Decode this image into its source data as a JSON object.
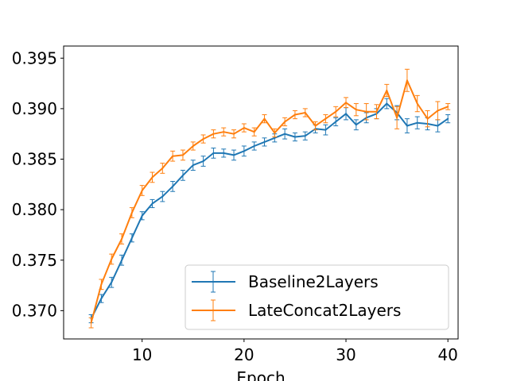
{
  "chart_data": {
    "type": "line",
    "title": "",
    "xlabel": "Epoch",
    "ylabel": "",
    "xlim": [
      2.3,
      41.0
    ],
    "ylim": [
      0.3672,
      0.3962
    ],
    "xticks": [
      10,
      20,
      30,
      40
    ],
    "yticks": [
      0.37,
      0.375,
      0.38,
      0.385,
      0.39,
      0.395
    ],
    "xtick_labels": [
      "10",
      "20",
      "30",
      "40"
    ],
    "ytick_labels": [
      "0.370",
      "0.375",
      "0.380",
      "0.385",
      "0.390",
      "0.395"
    ],
    "grid": false,
    "legend_position": "lower-right",
    "x": [
      5,
      6,
      7,
      8,
      9,
      10,
      11,
      12,
      13,
      14,
      15,
      16,
      17,
      18,
      19,
      20,
      21,
      22,
      23,
      24,
      25,
      26,
      27,
      28,
      29,
      30,
      31,
      32,
      33,
      34,
      35,
      36,
      37,
      38,
      39,
      40
    ],
    "series": [
      {
        "name": "Baseline2Layers",
        "color": "#1f77b4",
        "values": [
          0.3692,
          0.3712,
          0.3728,
          0.375,
          0.3772,
          0.3794,
          0.3806,
          0.3813,
          0.3823,
          0.3834,
          0.3844,
          0.3848,
          0.3856,
          0.3856,
          0.3854,
          0.3858,
          0.3863,
          0.3867,
          0.3871,
          0.3875,
          0.3872,
          0.3873,
          0.388,
          0.3879,
          0.3887,
          0.3895,
          0.3884,
          0.3891,
          0.3895,
          0.3905,
          0.3896,
          0.3883,
          0.3886,
          0.3885,
          0.3883,
          0.389
        ],
        "errors": [
          0.0004,
          0.0004,
          0.0005,
          0.0005,
          0.0004,
          0.0004,
          0.0004,
          0.0005,
          0.0005,
          0.0005,
          0.0005,
          0.0005,
          0.0005,
          0.0004,
          0.0005,
          0.0005,
          0.0004,
          0.0004,
          0.0004,
          0.0005,
          0.0004,
          0.0004,
          0.0004,
          0.0005,
          0.0004,
          0.0006,
          0.0005,
          0.0005,
          0.0005,
          0.0005,
          0.0007,
          0.0007,
          0.0006,
          0.0006,
          0.0006,
          0.0004
        ]
      },
      {
        "name": "LateConcat2Layers",
        "color": "#ff7f0e",
        "values": [
          0.3688,
          0.3726,
          0.3751,
          0.3771,
          0.3797,
          0.3819,
          0.3832,
          0.3841,
          0.3853,
          0.3854,
          0.3863,
          0.387,
          0.3875,
          0.3877,
          0.3875,
          0.3881,
          0.3877,
          0.389,
          0.3876,
          0.3887,
          0.3894,
          0.3896,
          0.3883,
          0.389,
          0.3897,
          0.3906,
          0.3899,
          0.3897,
          0.3897,
          0.3918,
          0.3891,
          0.3928,
          0.3905,
          0.389,
          0.3898,
          0.3902
        ],
        "errors": [
          0.0005,
          0.0005,
          0.0005,
          0.0005,
          0.0005,
          0.0005,
          0.0005,
          0.0005,
          0.0005,
          0.0005,
          0.0004,
          0.0004,
          0.0004,
          0.0004,
          0.0004,
          0.0004,
          0.0004,
          0.0004,
          0.0004,
          0.0004,
          0.0004,
          0.0004,
          0.0004,
          0.0004,
          0.0005,
          0.0005,
          0.0006,
          0.0008,
          0.0007,
          0.0006,
          0.0011,
          0.0011,
          0.0008,
          0.0008,
          0.0009,
          0.0003
        ]
      }
    ]
  }
}
